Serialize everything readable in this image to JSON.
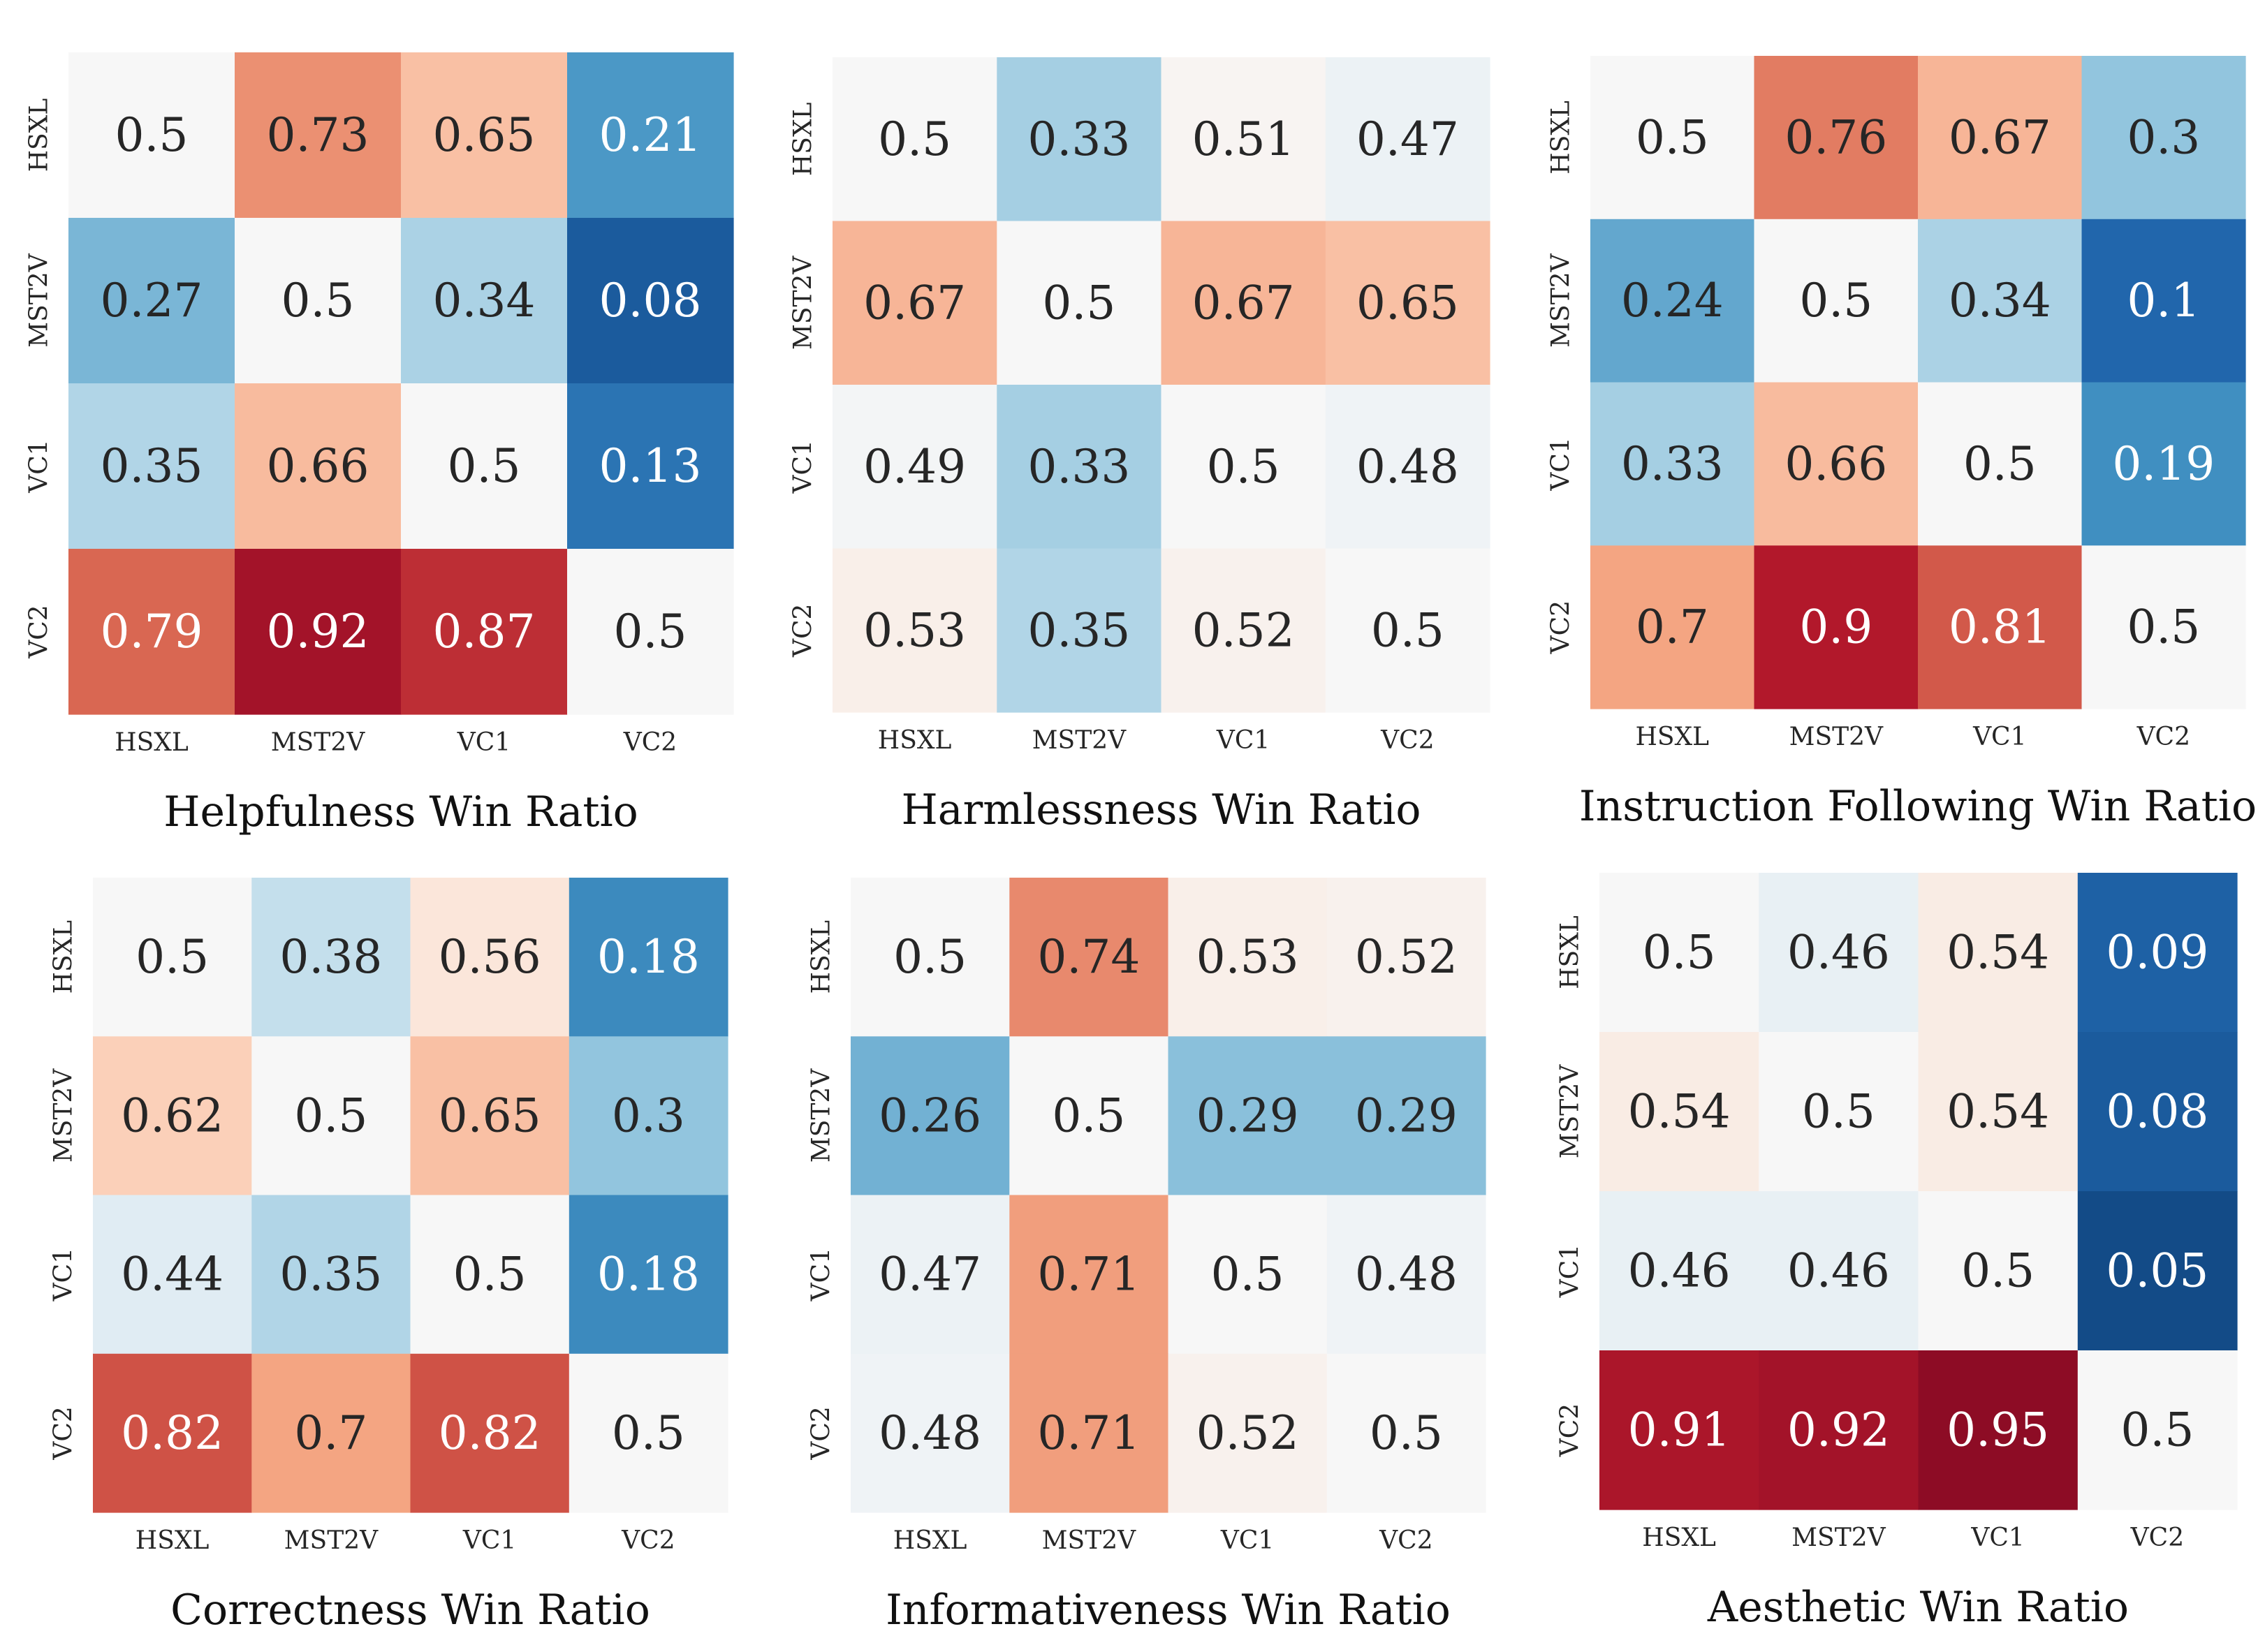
{
  "chart_data": [
    {
      "type": "heatmap",
      "title": "Helpfulness Win Ratio",
      "x_labels": [
        "HSXL",
        "MST2V",
        "VC1",
        "VC2"
      ],
      "y_labels": [
        "HSXL",
        "MST2V",
        "VC1",
        "VC2"
      ],
      "values": [
        [
          0.5,
          0.73,
          0.65,
          0.21
        ],
        [
          0.27,
          0.5,
          0.34,
          0.08
        ],
        [
          0.35,
          0.66,
          0.5,
          0.13
        ],
        [
          0.79,
          0.92,
          0.87,
          0.5
        ]
      ],
      "colormap": "RdBu_r",
      "vmin": 0,
      "vmax": 1,
      "colorbar": false,
      "grid": false
    },
    {
      "type": "heatmap",
      "title": "Harmlessness Win Ratio",
      "x_labels": [
        "HSXL",
        "MST2V",
        "VC1",
        "VC2"
      ],
      "y_labels": [
        "HSXL",
        "MST2V",
        "VC1",
        "VC2"
      ],
      "values": [
        [
          0.5,
          0.33,
          0.51,
          0.47
        ],
        [
          0.67,
          0.5,
          0.67,
          0.65
        ],
        [
          0.49,
          0.33,
          0.5,
          0.48
        ],
        [
          0.53,
          0.35,
          0.52,
          0.5
        ]
      ],
      "colormap": "RdBu_r",
      "vmin": 0,
      "vmax": 1,
      "colorbar": false,
      "grid": false
    },
    {
      "type": "heatmap",
      "title": "Instruction Following Win Ratio",
      "x_labels": [
        "HSXL",
        "MST2V",
        "VC1",
        "VC2"
      ],
      "y_labels": [
        "HSXL",
        "MST2V",
        "VC1",
        "VC2"
      ],
      "values": [
        [
          0.5,
          0.76,
          0.67,
          0.3
        ],
        [
          0.24,
          0.5,
          0.34,
          0.1
        ],
        [
          0.33,
          0.66,
          0.5,
          0.19
        ],
        [
          0.7,
          0.9,
          0.81,
          0.5
        ]
      ],
      "colormap": "RdBu_r",
      "vmin": 0,
      "vmax": 1,
      "colorbar": false,
      "grid": false
    },
    {
      "type": "heatmap",
      "title": "Correctness Win Ratio",
      "x_labels": [
        "HSXL",
        "MST2V",
        "VC1",
        "VC2"
      ],
      "y_labels": [
        "HSXL",
        "MST2V",
        "VC1",
        "VC2"
      ],
      "values": [
        [
          0.5,
          0.38,
          0.56,
          0.18
        ],
        [
          0.62,
          0.5,
          0.65,
          0.3
        ],
        [
          0.44,
          0.35,
          0.5,
          0.18
        ],
        [
          0.82,
          0.7,
          0.82,
          0.5
        ]
      ],
      "colormap": "RdBu_r",
      "vmin": 0,
      "vmax": 1,
      "colorbar": false,
      "grid": false
    },
    {
      "type": "heatmap",
      "title": "Informativeness Win Ratio",
      "x_labels": [
        "HSXL",
        "MST2V",
        "VC1",
        "VC2"
      ],
      "y_labels": [
        "HSXL",
        "MST2V",
        "VC1",
        "VC2"
      ],
      "values": [
        [
          0.5,
          0.74,
          0.53,
          0.52
        ],
        [
          0.26,
          0.5,
          0.29,
          0.29
        ],
        [
          0.47,
          0.71,
          0.5,
          0.48
        ],
        [
          0.48,
          0.71,
          0.52,
          0.5
        ]
      ],
      "colormap": "RdBu_r",
      "vmin": 0,
      "vmax": 1,
      "colorbar": false,
      "grid": false
    },
    {
      "type": "heatmap",
      "title": "Aesthetic Win Ratio",
      "x_labels": [
        "HSXL",
        "MST2V",
        "VC1",
        "VC2"
      ],
      "y_labels": [
        "HSXL",
        "MST2V",
        "VC1",
        "VC2"
      ],
      "values": [
        [
          0.5,
          0.46,
          0.54,
          0.09
        ],
        [
          0.54,
          0.5,
          0.54,
          0.08
        ],
        [
          0.46,
          0.46,
          0.5,
          0.05
        ],
        [
          0.91,
          0.92,
          0.95,
          0.5
        ]
      ],
      "colormap": "RdBu_r",
      "vmin": 0,
      "vmax": 1,
      "colorbar": false,
      "grid": false
    }
  ]
}
